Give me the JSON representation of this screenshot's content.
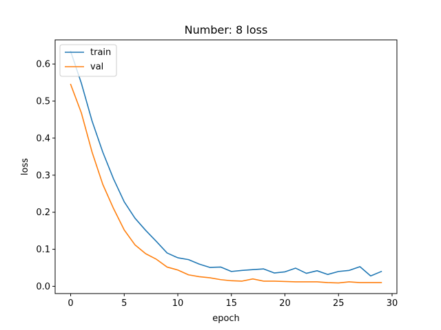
{
  "chart_data": {
    "type": "line",
    "title": "Number: 8 loss",
    "xlabel": "epoch",
    "ylabel": "loss",
    "xlim": [
      -1.45,
      30.45
    ],
    "ylim": [
      -0.0196,
      0.6652
    ],
    "xticks": [
      0,
      5,
      10,
      15,
      20,
      25,
      30
    ],
    "yticks": [
      0.0,
      0.1,
      0.2,
      0.3,
      0.4,
      0.5,
      0.6
    ],
    "xtick_labels": [
      "0",
      "5",
      "10",
      "15",
      "20",
      "25",
      "30"
    ],
    "ytick_labels": [
      "0.0",
      "0.1",
      "0.2",
      "0.3",
      "0.4",
      "0.5",
      "0.6"
    ],
    "grid": false,
    "legend_position": "top-left",
    "x": [
      0,
      1,
      2,
      3,
      4,
      5,
      6,
      7,
      8,
      9,
      10,
      11,
      12,
      13,
      14,
      15,
      16,
      17,
      18,
      19,
      20,
      21,
      22,
      23,
      24,
      25,
      26,
      27,
      28,
      29
    ],
    "series": [
      {
        "name": "train",
        "color": "#1f77b4",
        "values": [
          0.634,
          0.548,
          0.446,
          0.362,
          0.29,
          0.228,
          0.184,
          0.151,
          0.121,
          0.09,
          0.077,
          0.072,
          0.06,
          0.051,
          0.052,
          0.04,
          0.043,
          0.045,
          0.047,
          0.036,
          0.039,
          0.049,
          0.035,
          0.042,
          0.032,
          0.04,
          0.043,
          0.053,
          0.028,
          0.04
        ]
      },
      {
        "name": "val",
        "color": "#ff7f0e",
        "values": [
          0.545,
          0.468,
          0.362,
          0.275,
          0.21,
          0.152,
          0.112,
          0.088,
          0.073,
          0.052,
          0.044,
          0.031,
          0.026,
          0.023,
          0.018,
          0.015,
          0.014,
          0.02,
          0.014,
          0.014,
          0.013,
          0.012,
          0.012,
          0.012,
          0.01,
          0.009,
          0.012,
          0.01,
          0.01,
          0.01
        ]
      }
    ]
  }
}
